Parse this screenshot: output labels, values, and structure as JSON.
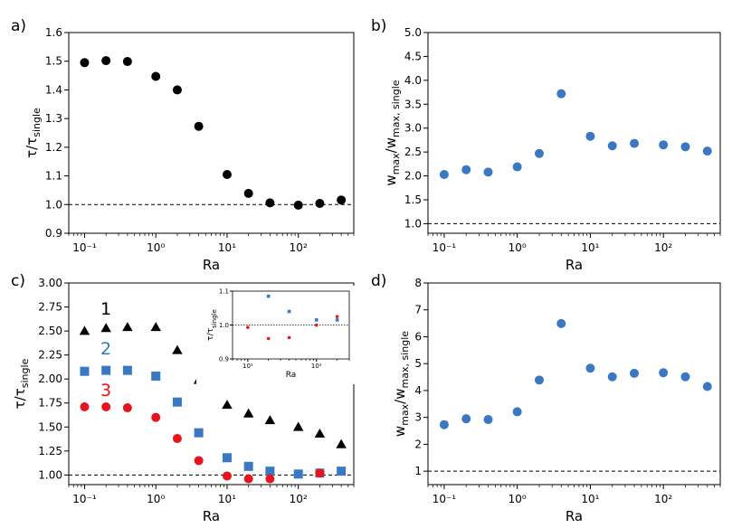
{
  "chart_data": [
    {
      "panel": "a)",
      "type": "scatter",
      "xlabel": "Ra",
      "ylabel": "τ/τ",
      "ylabel_sub": "single",
      "xscale": "log",
      "xlim": [
        0.06,
        600
      ],
      "ylim": [
        0.9,
        1.6
      ],
      "x_ticks": [
        "10⁻¹",
        "10⁰",
        "10¹",
        "10²"
      ],
      "y_ticks": [
        "0.9",
        "1.0",
        "1.1",
        "1.2",
        "1.3",
        "1.4",
        "1.5",
        "1.6"
      ],
      "reference_line": 1.0,
      "series": [
        {
          "color": "#000000",
          "marker": "circle",
          "x": [
            0.1,
            0.2,
            0.4,
            1,
            2,
            4,
            10,
            20,
            40,
            100,
            200,
            400
          ],
          "y": [
            1.495,
            1.502,
            1.499,
            1.447,
            1.4,
            1.273,
            1.105,
            1.039,
            1.006,
            0.998,
            1.004,
            1.016
          ]
        }
      ]
    },
    {
      "panel": "b)",
      "type": "scatter",
      "xlabel": "Ra",
      "ylabel": "w",
      "ylabel_sub": "max",
      "ylabel_mid": "/w",
      "ylabel_sub2": "max, single",
      "xscale": "log",
      "xlim": [
        0.06,
        600
      ],
      "ylim": [
        0.8,
        5.0
      ],
      "x_ticks": [
        "10⁻¹",
        "10⁰",
        "10¹",
        "10²"
      ],
      "y_ticks": [
        "1.0",
        "1.5",
        "2.0",
        "2.5",
        "3.0",
        "3.5",
        "4.0",
        "4.5",
        "5.0"
      ],
      "reference_line": 1.0,
      "series": [
        {
          "color": "#3a78c3",
          "marker": "circle",
          "x": [
            0.1,
            0.2,
            0.4,
            1,
            2,
            4,
            10,
            20,
            40,
            100,
            200,
            400
          ],
          "y": [
            2.03,
            2.13,
            2.08,
            2.19,
            2.47,
            3.72,
            2.83,
            2.63,
            2.68,
            2.65,
            2.61,
            2.52
          ]
        }
      ]
    },
    {
      "panel": "c)",
      "type": "scatter",
      "xlabel": "Ra",
      "ylabel": "τ/τ",
      "ylabel_sub": "single",
      "xscale": "log",
      "xlim": [
        0.06,
        600
      ],
      "ylim": [
        0.9,
        3.0
      ],
      "x_ticks": [
        "10⁻¹",
        "10⁰",
        "10¹",
        "10²"
      ],
      "y_ticks": [
        "1.00",
        "1.25",
        "1.50",
        "1.75",
        "2.00",
        "2.25",
        "2.50",
        "2.75",
        "3.00"
      ],
      "reference_line": 1.0,
      "annotations": [
        {
          "text": "1",
          "color": "#000000"
        },
        {
          "text": "2",
          "color": "#2b7fb0"
        },
        {
          "text": "3",
          "color": "#e8141c"
        }
      ],
      "series": [
        {
          "color": "#000000",
          "marker": "triangle",
          "x": [
            0.1,
            0.2,
            0.4,
            1,
            2,
            4,
            10,
            20,
            40,
            100,
            200,
            400
          ],
          "y": [
            2.5,
            2.53,
            2.54,
            2.54,
            2.3,
            1.99,
            1.73,
            1.64,
            1.57,
            1.5,
            1.43,
            1.32
          ]
        },
        {
          "color": "#3a78c3",
          "marker": "square",
          "x": [
            0.1,
            0.2,
            0.4,
            1,
            2,
            4,
            10,
            20,
            40,
            100,
            200,
            400
          ],
          "y": [
            2.08,
            2.09,
            2.09,
            2.03,
            1.76,
            1.44,
            1.18,
            1.09,
            1.04,
            1.01,
            1.02,
            1.04
          ]
        },
        {
          "color": "#e8141c",
          "marker": "circle",
          "x": [
            0.1,
            0.2,
            0.4,
            1,
            2,
            4,
            10,
            20,
            40,
            200
          ],
          "y": [
            1.71,
            1.71,
            1.7,
            1.6,
            1.38,
            1.15,
            0.99,
            0.96,
            0.96,
            1.02
          ]
        }
      ],
      "inset": {
        "xlabel": "Ra",
        "ylabel": "τ/τ",
        "ylabel_sub": "single",
        "xscale": "log",
        "xlim": [
          6,
          300
        ],
        "ylim": [
          0.9,
          1.1
        ],
        "x_ticks": [
          "10¹",
          "10²"
        ],
        "y_ticks": [
          "0.9",
          "1.0",
          "1.1"
        ],
        "reference_line": 1.0,
        "series": [
          {
            "color": "#3a78c3",
            "marker": "square",
            "x": [
              20,
              40,
              100,
              200
            ],
            "y": [
              1.085,
              1.04,
              1.015,
              1.015
            ]
          },
          {
            "color": "#e8141c",
            "marker": "circle",
            "x": [
              10,
              20,
              40,
              100,
              200
            ],
            "y": [
              0.993,
              0.96,
              0.963,
              1.0,
              1.025
            ]
          }
        ]
      }
    },
    {
      "panel": "d)",
      "type": "scatter",
      "xlabel": "Ra",
      "ylabel": "w",
      "ylabel_sub": "max",
      "ylabel_mid": "/w",
      "ylabel_sub2": "max, single",
      "xscale": "log",
      "xlim": [
        0.06,
        600
      ],
      "ylim": [
        0.5,
        8.0
      ],
      "x_ticks": [
        "10⁻¹",
        "10⁰",
        "10¹",
        "10²"
      ],
      "y_ticks": [
        "1",
        "2",
        "3",
        "4",
        "5",
        "6",
        "7",
        "8"
      ],
      "reference_line": 1.0,
      "series": [
        {
          "color": "#3a78c3",
          "marker": "circle",
          "x": [
            0.1,
            0.2,
            0.4,
            1,
            2,
            4,
            10,
            20,
            40,
            100,
            200,
            400
          ],
          "y": [
            2.73,
            2.95,
            2.92,
            3.21,
            4.39,
            6.49,
            4.83,
            4.51,
            4.64,
            4.66,
            4.51,
            4.15
          ]
        }
      ]
    }
  ]
}
